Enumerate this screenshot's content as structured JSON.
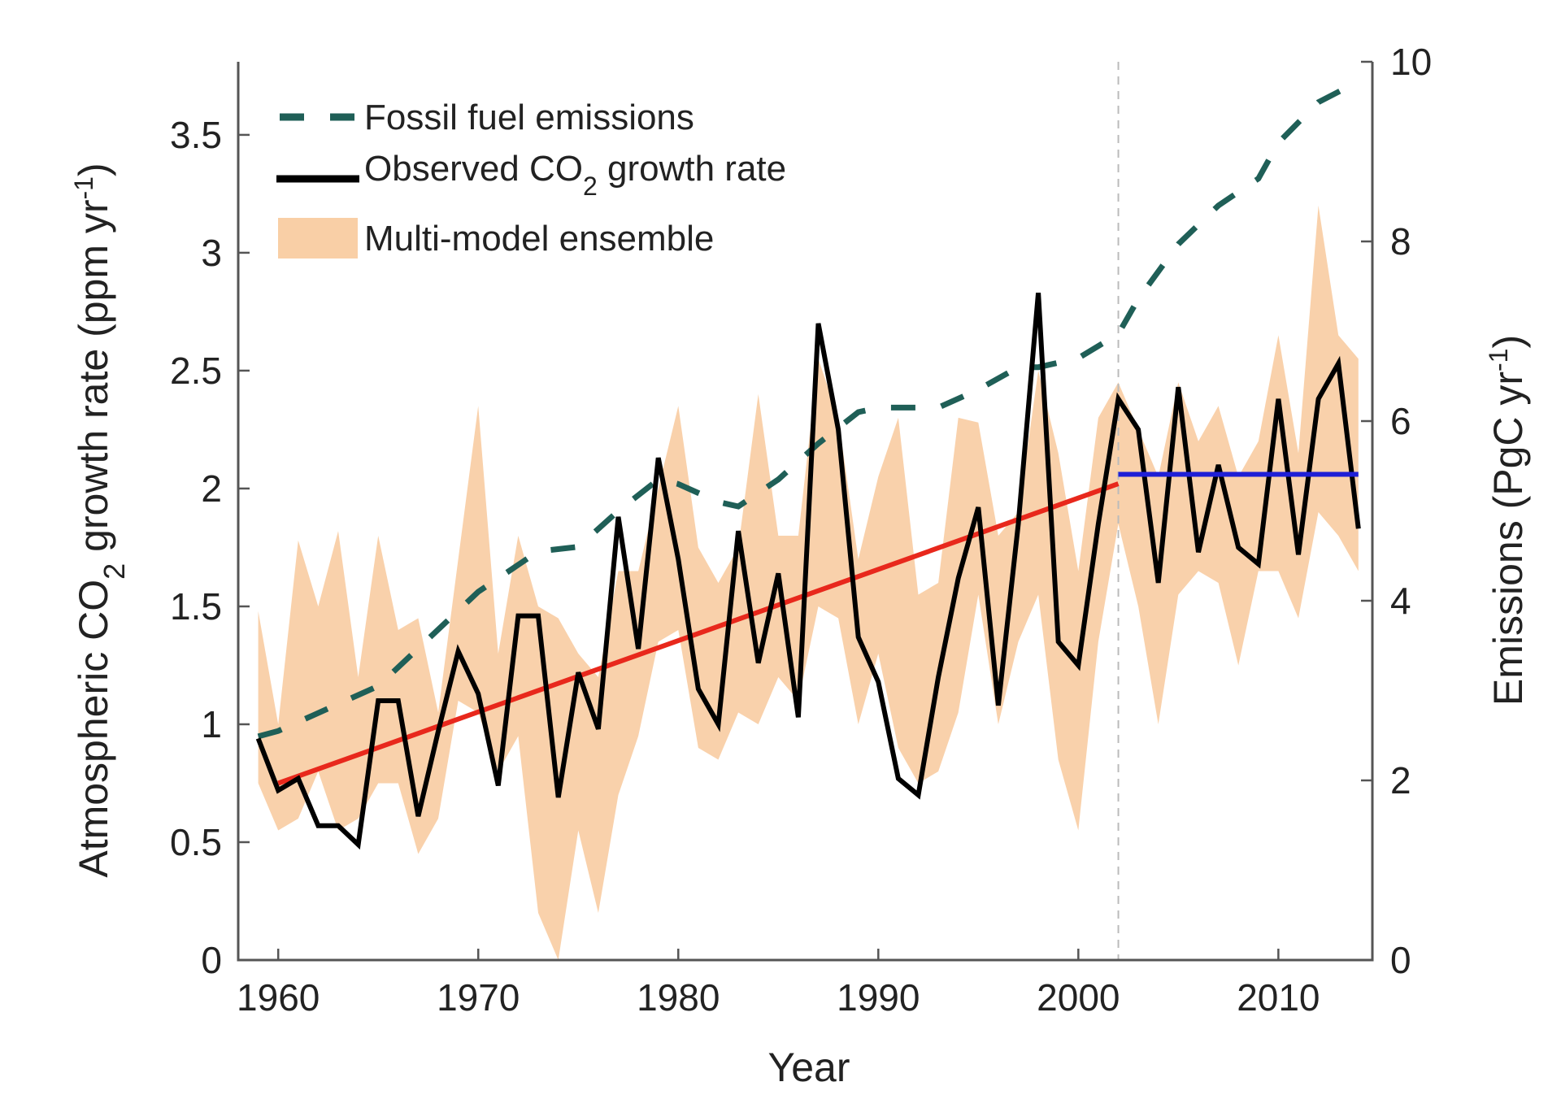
{
  "chart_data": {
    "type": "line",
    "title": "",
    "xlabel": "Year",
    "ylabel": {
      "prefix": "Atmospheric CO",
      "sub": "2",
      "suffix": " growth rate (ppm yr",
      "sup": "-1",
      "end": ")"
    },
    "y2label": {
      "prefix": "Emissions (PgC yr",
      "sup": "-1",
      "end": ")"
    },
    "xlim": [
      1958,
      2014.7
    ],
    "ylim": [
      0,
      3.81
    ],
    "y2lim": [
      0,
      10
    ],
    "xticks": [
      "1960",
      "1970",
      "1980",
      "1990",
      "2000",
      "2010"
    ],
    "xtick_values": [
      1960,
      1970,
      1980,
      1990,
      2000,
      2010
    ],
    "yticks": [
      "0",
      "0.5",
      "1",
      "1.5",
      "2",
      "2.5",
      "3",
      "3.5"
    ],
    "ytick_values": [
      0,
      0.5,
      1,
      1.5,
      2,
      2.5,
      3,
      3.5
    ],
    "y2ticks": [
      "0",
      "2",
      "4",
      "6",
      "8",
      "10"
    ],
    "y2tick_values": [
      0,
      2,
      4,
      6,
      8,
      10
    ],
    "grid": false,
    "legend_position": "top-left",
    "legend": [
      {
        "label": "Fossil fuel emissions",
        "style": "dashed",
        "color": "#1f5f57"
      },
      {
        "label_prefix": "Observed CO",
        "label_sub": "2",
        "label_suffix": " growth rate",
        "style": "solid",
        "color": "#000000"
      },
      {
        "label": "Multi-model ensemble",
        "style": "band",
        "color": "#f9cfa6"
      }
    ],
    "series": [
      {
        "name": "Observed CO2 growth rate",
        "axis": "left",
        "color": "#000000",
        "x": [
          1959,
          1960,
          1961,
          1962,
          1963,
          1964,
          1965,
          1966,
          1967,
          1968,
          1969,
          1970,
          1971,
          1972,
          1973,
          1974,
          1975,
          1976,
          1977,
          1978,
          1979,
          1980,
          1981,
          1982,
          1983,
          1984,
          1985,
          1986,
          1987,
          1988,
          1989,
          1990,
          1991,
          1992,
          1993,
          1994,
          1995,
          1996,
          1997,
          1998,
          1999,
          2000,
          2001,
          2002,
          2003,
          2004,
          2005,
          2006,
          2007,
          2008,
          2009,
          2010,
          2011,
          2012,
          2013,
          2014
        ],
        "values": [
          0.94,
          0.72,
          0.77,
          0.57,
          0.57,
          0.49,
          1.1,
          1.1,
          0.61,
          0.97,
          1.31,
          1.13,
          0.74,
          1.46,
          1.46,
          0.69,
          1.22,
          0.98,
          1.88,
          1.32,
          2.13,
          1.7,
          1.15,
          1.0,
          1.82,
          1.26,
          1.64,
          1.03,
          2.7,
          2.25,
          1.37,
          1.18,
          0.77,
          0.7,
          1.2,
          1.62,
          1.92,
          1.08,
          1.85,
          2.83,
          1.35,
          1.25,
          1.85,
          2.38,
          2.25,
          1.6,
          2.43,
          1.73,
          2.1,
          1.75,
          1.68,
          2.38,
          1.72,
          2.38,
          2.53,
          1.83
        ]
      },
      {
        "name": "Fossil fuel emissions",
        "axis": "right",
        "color": "#1f5f57",
        "x": [
          1959,
          1960,
          1965,
          1970,
          1973,
          1975,
          1977,
          1979,
          1980,
          1982,
          1983,
          1985,
          1987,
          1989,
          1990,
          1993,
          1995,
          1997,
          1998,
          2000,
          2002,
          2003,
          2005,
          2007,
          2009,
          2010,
          2012,
          2014
        ],
        "values": [
          2.49,
          2.55,
          3.05,
          4.1,
          4.55,
          4.6,
          5.0,
          5.35,
          5.3,
          5.1,
          5.05,
          5.35,
          5.75,
          6.1,
          6.15,
          6.15,
          6.35,
          6.6,
          6.6,
          6.7,
          6.97,
          7.36,
          7.97,
          8.4,
          8.7,
          9.1,
          9.55,
          9.78
        ]
      },
      {
        "name": "Trend 1960-2002",
        "axis": "left",
        "color": "#e8281c",
        "x": [
          1960,
          2002
        ],
        "values": [
          0.75,
          2.02
        ]
      },
      {
        "name": "Mean 2002-2014",
        "axis": "left",
        "color": "#1f1fd6",
        "x": [
          2002,
          2014
        ],
        "values": [
          2.06,
          2.06
        ]
      }
    ],
    "band": {
      "name": "Multi-model ensemble",
      "axis": "left",
      "color": "#f9cfa6",
      "x": [
        1959,
        1960,
        1961,
        1962,
        1963,
        1964,
        1965,
        1966,
        1967,
        1968,
        1969,
        1970,
        1971,
        1972,
        1973,
        1974,
        1975,
        1976,
        1977,
        1978,
        1979,
        1980,
        1981,
        1982,
        1983,
        1984,
        1985,
        1986,
        1987,
        1988,
        1989,
        1990,
        1991,
        1992,
        1993,
        1994,
        1995,
        1996,
        1997,
        1998,
        1999,
        2000,
        2001,
        2002,
        2003,
        2004,
        2005,
        2006,
        2007,
        2008,
        2009,
        2010,
        2011,
        2012,
        2013,
        2014
      ],
      "upper": [
        1.48,
        1.0,
        1.78,
        1.5,
        1.82,
        1.2,
        1.8,
        1.4,
        1.45,
        1.05,
        1.7,
        2.35,
        1.3,
        1.8,
        1.5,
        1.45,
        1.3,
        1.2,
        1.65,
        1.65,
        2.0,
        2.35,
        1.75,
        1.6,
        1.75,
        2.4,
        1.8,
        1.8,
        2.55,
        2.3,
        1.7,
        2.05,
        2.3,
        1.55,
        1.6,
        2.3,
        2.28,
        1.8,
        1.9,
        2.5,
        2.15,
        1.65,
        2.3,
        2.45,
        2.25,
        2.05,
        2.45,
        2.2,
        2.35,
        2.05,
        2.2,
        2.65,
        2.15,
        3.2,
        2.65,
        2.55
      ],
      "lower": [
        0.75,
        0.55,
        0.6,
        0.8,
        0.55,
        0.6,
        0.75,
        0.75,
        0.45,
        0.6,
        1.1,
        1.05,
        0.8,
        0.95,
        0.2,
        0.0,
        0.55,
        0.2,
        0.7,
        0.95,
        1.35,
        1.4,
        0.9,
        0.85,
        1.05,
        1.0,
        1.2,
        1.1,
        1.5,
        1.45,
        1.0,
        1.3,
        0.9,
        0.75,
        0.8,
        1.05,
        1.55,
        1.0,
        1.35,
        1.55,
        0.85,
        0.55,
        1.35,
        1.85,
        1.5,
        1.0,
        1.55,
        1.65,
        1.6,
        1.25,
        1.65,
        1.65,
        1.45,
        1.9,
        1.8,
        1.65
      ]
    },
    "vertical_marker": {
      "x": 2002,
      "style": "dashed",
      "color": "#bbbbbb"
    }
  }
}
